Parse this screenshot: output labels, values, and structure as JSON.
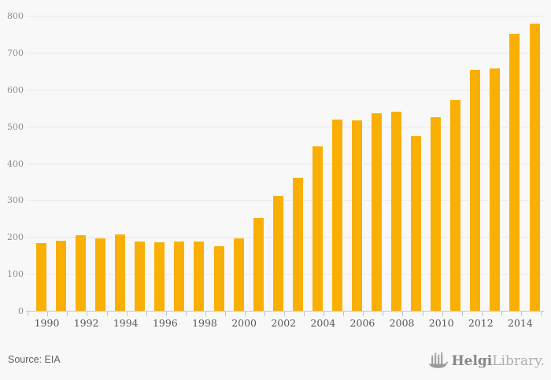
{
  "chart_data": {
    "type": "bar",
    "categories": [
      "1990",
      "1991",
      "1992",
      "1993",
      "1994",
      "1995",
      "1996",
      "1997",
      "1998",
      "1999",
      "2000",
      "2001",
      "2002",
      "2003",
      "2004",
      "2005",
      "2006",
      "2007",
      "2008",
      "2009",
      "2010",
      "2011",
      "2012",
      "2013",
      "2014",
      "2015"
    ],
    "values": [
      183,
      190,
      205,
      196,
      207,
      188,
      186,
      188,
      188,
      176,
      197,
      251,
      311,
      360,
      446,
      519,
      516,
      535,
      539,
      474,
      524,
      571,
      652,
      658,
      750,
      779
    ],
    "title": "",
    "xlabel": "",
    "ylabel": "",
    "ylim": [
      0,
      800
    ],
    "yticks": [
      0,
      100,
      200,
      300,
      400,
      500,
      600,
      700,
      800
    ],
    "xtick_labels": [
      "1990",
      "1992",
      "1994",
      "1996",
      "1998",
      "2000",
      "2002",
      "2004",
      "2006",
      "2008",
      "2010",
      "2012",
      "2014"
    ],
    "grid": true,
    "legend": false,
    "bar_color": "#faaf05",
    "gridline_color": "#e9e9e9",
    "axis_color": "#bcc6d6"
  },
  "footer": {
    "source_label": "Source: EIA",
    "logo": {
      "bold_text": "Helgi",
      "light_text": "Library."
    }
  }
}
